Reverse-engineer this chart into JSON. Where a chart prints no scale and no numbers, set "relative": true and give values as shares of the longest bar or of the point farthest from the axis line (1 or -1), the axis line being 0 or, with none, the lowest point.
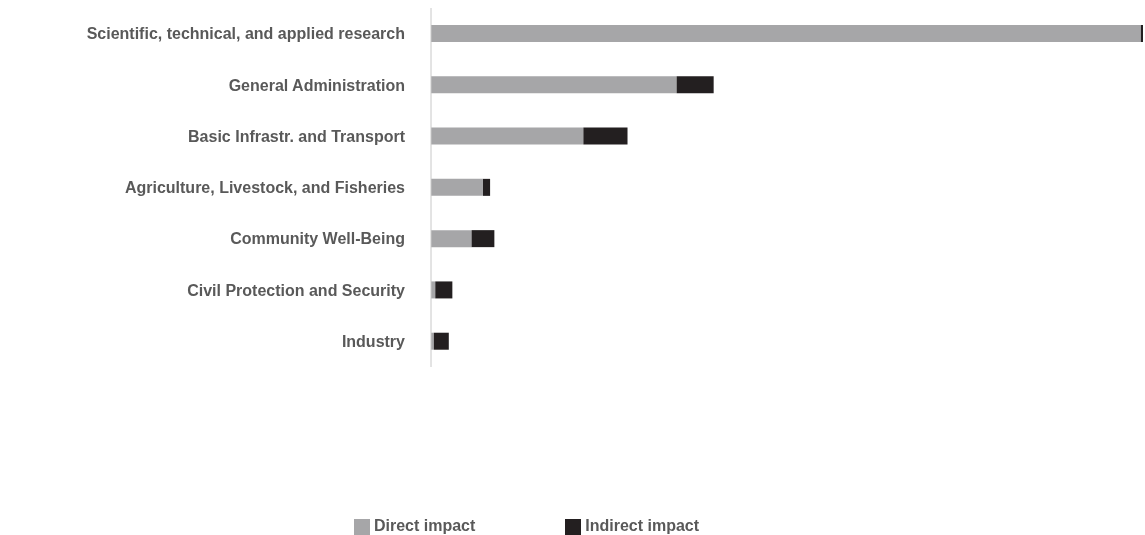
{
  "chart_data": {
    "type": "bar",
    "orientation": "horizontal",
    "stacked": true,
    "relative": true,
    "legend": "bottom",
    "categories": [
      "Scientific, technical, and applied research",
      "General Administration",
      "Basic Infrastr. and Transport",
      "Agriculture, Livestock, and Fisheries",
      "Community Well-Being",
      "Civil Protection and Security",
      "Industry"
    ],
    "series": [
      {
        "name": "Direct impact",
        "color": "#a6a6a8",
        "values": [
          0.997,
          0.345,
          0.214,
          0.073,
          0.057,
          0.006,
          0.004
        ]
      },
      {
        "name": "Indirect impact",
        "color": "#231f20",
        "values": [
          0.003,
          0.052,
          0.062,
          0.01,
          0.032,
          0.024,
          0.021
        ]
      }
    ]
  }
}
